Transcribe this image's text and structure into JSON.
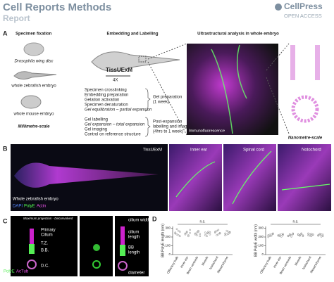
{
  "header": {
    "title": "Cell Reports Methods",
    "subtitle": "Report",
    "brand": "CellPress",
    "brand_sub": "OPEN ACCESS"
  },
  "panel_a": {
    "label": "A",
    "heading_fixation": "Specimen fixation",
    "heading_embedding": "Embedding and Labelling",
    "heading_analysis": "Ultrastructural analysis in whole embryo",
    "specimens": [
      "Drosophila wing disc",
      "whole zebrafish embryo",
      "whole mouse embryo"
    ],
    "scale_left": "Millimetre-scale",
    "method": "TissUExM",
    "magnification": "4X",
    "steps_prep": [
      "Specimen crosslinking",
      "Embedding preparation",
      "Gelation activation",
      "Specimen denaturation",
      "Gel equilibration – partial expansion"
    ],
    "prep_summary": [
      "Gel preparation",
      "(1 week)"
    ],
    "steps_post": [
      "Gel labelling",
      "Gel expansion – total expansion",
      "Gel imaging",
      "Control on reference structure"
    ],
    "post_summary": [
      "Post-expansion",
      "labelling and imaging",
      "(4hrs to 1 week)"
    ],
    "image_label": "Immunofluorescence",
    "scale_right": "Nanometre-scale"
  },
  "panel_b": {
    "label": "B",
    "method": "TissUExM",
    "caption": "Whole zebrafish embryo",
    "legend": [
      "DAPI",
      "PolyE",
      "Actin"
    ],
    "insets": [
      "Inner ear",
      "Spinal cord",
      "Notochord"
    ]
  },
  "panel_c": {
    "label": "C",
    "projection": "Maximum projection - Deconvolved",
    "primary": [
      "Primary",
      "Cilium"
    ],
    "tz": "T.Z.",
    "bb": "B.B.",
    "dc": "D.C.",
    "legend": [
      "PolyE",
      "AcTub"
    ],
    "cilium_width": "cilium width",
    "cilium_length": [
      "cilium",
      "length"
    ],
    "bb_length": [
      "BB",
      "length"
    ],
    "diameter": "diameter"
  },
  "panel_d": {
    "label": "D"
  },
  "chart_data": [
    {
      "type": "strip",
      "y_label": "BB PolyE length (nm)",
      "annotation": "n.s.",
      "categories": [
        "Olfactory bulb",
        "Inner ear",
        "Brain ventricle",
        "Muscle",
        "Notochord",
        "Mesenchyme"
      ],
      "values": [
        [
          250,
          230,
          270,
          210,
          240,
          290,
          220,
          260
        ],
        [
          240,
          260,
          220,
          280,
          230,
          250,
          210,
          245
        ],
        [
          230,
          250,
          270,
          210,
          240,
          220,
          260,
          235
        ],
        [
          220,
          240,
          260,
          230,
          250,
          210,
          245,
          255
        ],
        [
          250,
          270,
          230,
          240,
          260,
          220,
          280,
          245
        ],
        [
          240,
          230,
          260,
          250,
          220,
          270,
          235,
          255
        ]
      ],
      "ylim": [
        0,
        320
      ],
      "yticks": [
        0,
        100,
        200,
        300
      ],
      "color": "#888"
    },
    {
      "type": "strip",
      "y_label": "BB PolyE width (nm)",
      "annotation": "n.s.",
      "categories": [
        "Olfactory bulb",
        "Inner ear",
        "Brain ventricle",
        "Muscle",
        "Notochord",
        "Mesenchyme"
      ],
      "values": [
        [
          220,
          210,
          230,
          240,
          200,
          225,
          215,
          235
        ],
        [
          215,
          225,
          205,
          235,
          220,
          210,
          230,
          222
        ],
        [
          210,
          230,
          220,
          240,
          215,
          225,
          205,
          232
        ],
        [
          225,
          215,
          235,
          210,
          230,
          220,
          240,
          218
        ],
        [
          220,
          230,
          210,
          225,
          240,
          215,
          235,
          228
        ],
        [
          215,
          225,
          230,
          210,
          220,
          235,
          205,
          226
        ]
      ],
      "ylim": [
        0,
        320
      ],
      "yticks": [
        0,
        100,
        200,
        300
      ],
      "color": "#888"
    }
  ]
}
